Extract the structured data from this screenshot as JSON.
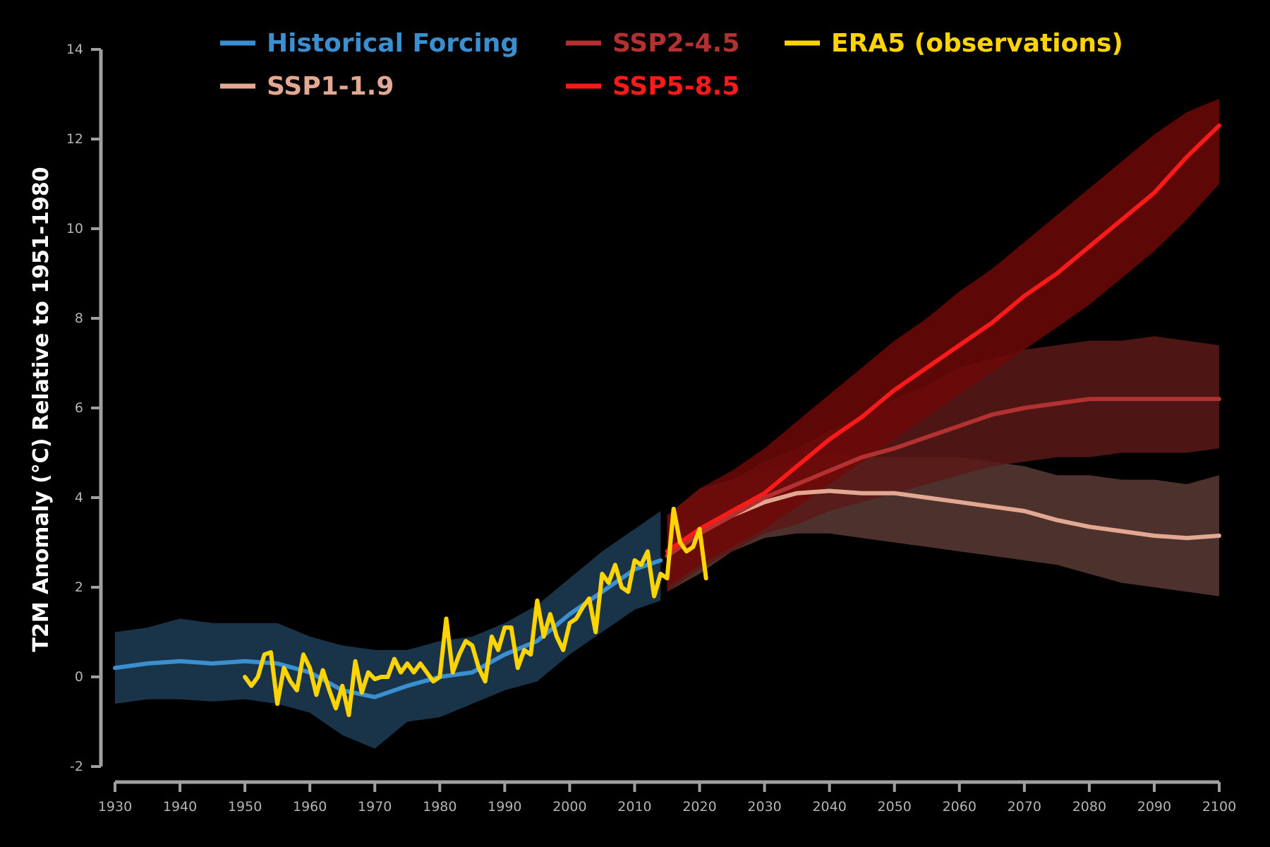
{
  "chart_data": {
    "type": "line",
    "title": "",
    "xlabel": "",
    "ylabel": "T2M Anomaly (°C) Relative to 1951-1980",
    "xlim": [
      1930,
      2100
    ],
    "ylim": [
      -2,
      14
    ],
    "x_ticks": [
      1930,
      1940,
      1950,
      1960,
      1970,
      1980,
      1990,
      2000,
      2010,
      2020,
      2030,
      2040,
      2050,
      2060,
      2070,
      2080,
      2090,
      2100
    ],
    "y_ticks": [
      -2,
      0,
      2,
      4,
      6,
      8,
      10,
      12,
      14
    ],
    "grid": false,
    "legend_position": "top",
    "series": [
      {
        "name": "Historical Forcing",
        "color": "#3a8fd0",
        "band_color": "#1d3c55",
        "x": [
          1930,
          1935,
          1940,
          1945,
          1950,
          1955,
          1960,
          1965,
          1970,
          1975,
          1980,
          1985,
          1990,
          1995,
          2000,
          2005,
          2010,
          2014
        ],
        "y": [
          0.2,
          0.3,
          0.35,
          0.3,
          0.35,
          0.3,
          0.1,
          -0.3,
          -0.45,
          -0.2,
          0.0,
          0.1,
          0.5,
          0.8,
          1.4,
          1.9,
          2.4,
          2.6
        ],
        "lower": [
          -0.6,
          -0.5,
          -0.5,
          -0.55,
          -0.5,
          -0.6,
          -0.8,
          -1.3,
          -1.6,
          -1.0,
          -0.9,
          -0.6,
          -0.3,
          -0.1,
          0.5,
          1.0,
          1.5,
          1.7
        ],
        "upper": [
          1.0,
          1.1,
          1.3,
          1.2,
          1.2,
          1.2,
          0.9,
          0.7,
          0.6,
          0.6,
          0.8,
          0.9,
          1.2,
          1.6,
          2.2,
          2.8,
          3.3,
          3.7
        ]
      },
      {
        "name": "SSP1-1.9",
        "color": "#e3a892",
        "band_color": "#5a3a34",
        "x": [
          2015,
          2020,
          2025,
          2030,
          2035,
          2040,
          2045,
          2050,
          2055,
          2060,
          2065,
          2070,
          2075,
          2080,
          2085,
          2090,
          2095,
          2100
        ],
        "y": [
          2.7,
          3.2,
          3.6,
          3.9,
          4.1,
          4.15,
          4.1,
          4.1,
          4.0,
          3.9,
          3.8,
          3.7,
          3.5,
          3.35,
          3.25,
          3.15,
          3.1,
          3.15
        ],
        "lower": [
          1.9,
          2.3,
          2.8,
          3.1,
          3.2,
          3.2,
          3.1,
          3.0,
          2.9,
          2.8,
          2.7,
          2.6,
          2.5,
          2.3,
          2.1,
          2.0,
          1.9,
          1.8
        ],
        "upper": [
          3.6,
          4.2,
          4.4,
          4.6,
          4.8,
          5.0,
          4.9,
          4.9,
          4.9,
          4.9,
          4.8,
          4.7,
          4.5,
          4.5,
          4.4,
          4.4,
          4.3,
          4.5
        ]
      },
      {
        "name": "SSP2-4.5",
        "color": "#b33131",
        "band_color": "#5a1a18",
        "x": [
          2015,
          2020,
          2025,
          2030,
          2035,
          2040,
          2045,
          2050,
          2055,
          2060,
          2065,
          2070,
          2075,
          2080,
          2085,
          2090,
          2095,
          2100
        ],
        "y": [
          2.7,
          3.2,
          3.6,
          4.0,
          4.3,
          4.6,
          4.9,
          5.1,
          5.35,
          5.6,
          5.85,
          6.0,
          6.1,
          6.2,
          6.2,
          6.2,
          6.2,
          6.2
        ],
        "lower": [
          1.9,
          2.4,
          2.8,
          3.2,
          3.4,
          3.7,
          3.9,
          4.1,
          4.3,
          4.5,
          4.7,
          4.8,
          4.9,
          4.9,
          5.0,
          5.0,
          5.0,
          5.1
        ],
        "upper": [
          3.6,
          4.1,
          4.4,
          4.8,
          5.1,
          5.5,
          5.8,
          6.2,
          6.5,
          6.9,
          7.1,
          7.3,
          7.4,
          7.5,
          7.5,
          7.6,
          7.5,
          7.4
        ]
      },
      {
        "name": "SSP5-8.5",
        "color": "#ff1a1a",
        "band_color": "#6e0808",
        "x": [
          2015,
          2020,
          2025,
          2030,
          2035,
          2040,
          2045,
          2050,
          2055,
          2060,
          2065,
          2070,
          2075,
          2080,
          2085,
          2090,
          2095,
          2100
        ],
        "y": [
          2.8,
          3.3,
          3.7,
          4.1,
          4.7,
          5.3,
          5.8,
          6.4,
          6.9,
          7.4,
          7.9,
          8.5,
          9.0,
          9.6,
          10.2,
          10.8,
          11.6,
          12.3
        ],
        "lower": [
          2.0,
          2.5,
          2.9,
          3.3,
          3.8,
          4.3,
          4.8,
          5.3,
          5.8,
          6.3,
          6.8,
          7.3,
          7.8,
          8.3,
          8.9,
          9.5,
          10.2,
          11.0
        ],
        "upper": [
          3.6,
          4.2,
          4.6,
          5.1,
          5.7,
          6.3,
          6.9,
          7.5,
          8.0,
          8.6,
          9.1,
          9.7,
          10.3,
          10.9,
          11.5,
          12.1,
          12.6,
          12.9
        ]
      },
      {
        "name": "ERA5 (observations)",
        "color": "#ffd400",
        "x": [
          1950,
          1951,
          1952,
          1953,
          1954,
          1955,
          1956,
          1957,
          1958,
          1959,
          1960,
          1961,
          1962,
          1963,
          1964,
          1965,
          1966,
          1967,
          1968,
          1969,
          1970,
          1971,
          1972,
          1973,
          1974,
          1975,
          1976,
          1977,
          1978,
          1979,
          1980,
          1981,
          1982,
          1983,
          1984,
          1985,
          1986,
          1987,
          1988,
          1989,
          1990,
          1991,
          1992,
          1993,
          1994,
          1995,
          1996,
          1997,
          1998,
          1999,
          2000,
          2001,
          2002,
          2003,
          2004,
          2005,
          2006,
          2007,
          2008,
          2009,
          2010,
          2011,
          2012,
          2013,
          2014,
          2015,
          2016,
          2017,
          2018,
          2019,
          2020,
          2021
        ],
        "y": [
          0.0,
          -0.2,
          0.0,
          0.5,
          0.55,
          -0.6,
          0.2,
          -0.1,
          -0.3,
          0.5,
          0.2,
          -0.4,
          0.15,
          -0.3,
          -0.7,
          -0.2,
          -0.85,
          0.35,
          -0.35,
          0.1,
          -0.05,
          0.0,
          0.0,
          0.4,
          0.1,
          0.3,
          0.1,
          0.3,
          0.1,
          -0.1,
          0.0,
          1.3,
          0.1,
          0.5,
          0.8,
          0.7,
          0.2,
          -0.1,
          0.9,
          0.6,
          1.1,
          1.1,
          0.2,
          0.6,
          0.5,
          1.7,
          0.9,
          1.4,
          0.9,
          0.6,
          1.2,
          1.3,
          1.55,
          1.75,
          1.0,
          2.3,
          2.1,
          2.5,
          2.0,
          1.9,
          2.6,
          2.5,
          2.8,
          1.8,
          2.3,
          2.2,
          3.75,
          3.0,
          2.8,
          2.9,
          3.3,
          2.2
        ]
      }
    ]
  }
}
